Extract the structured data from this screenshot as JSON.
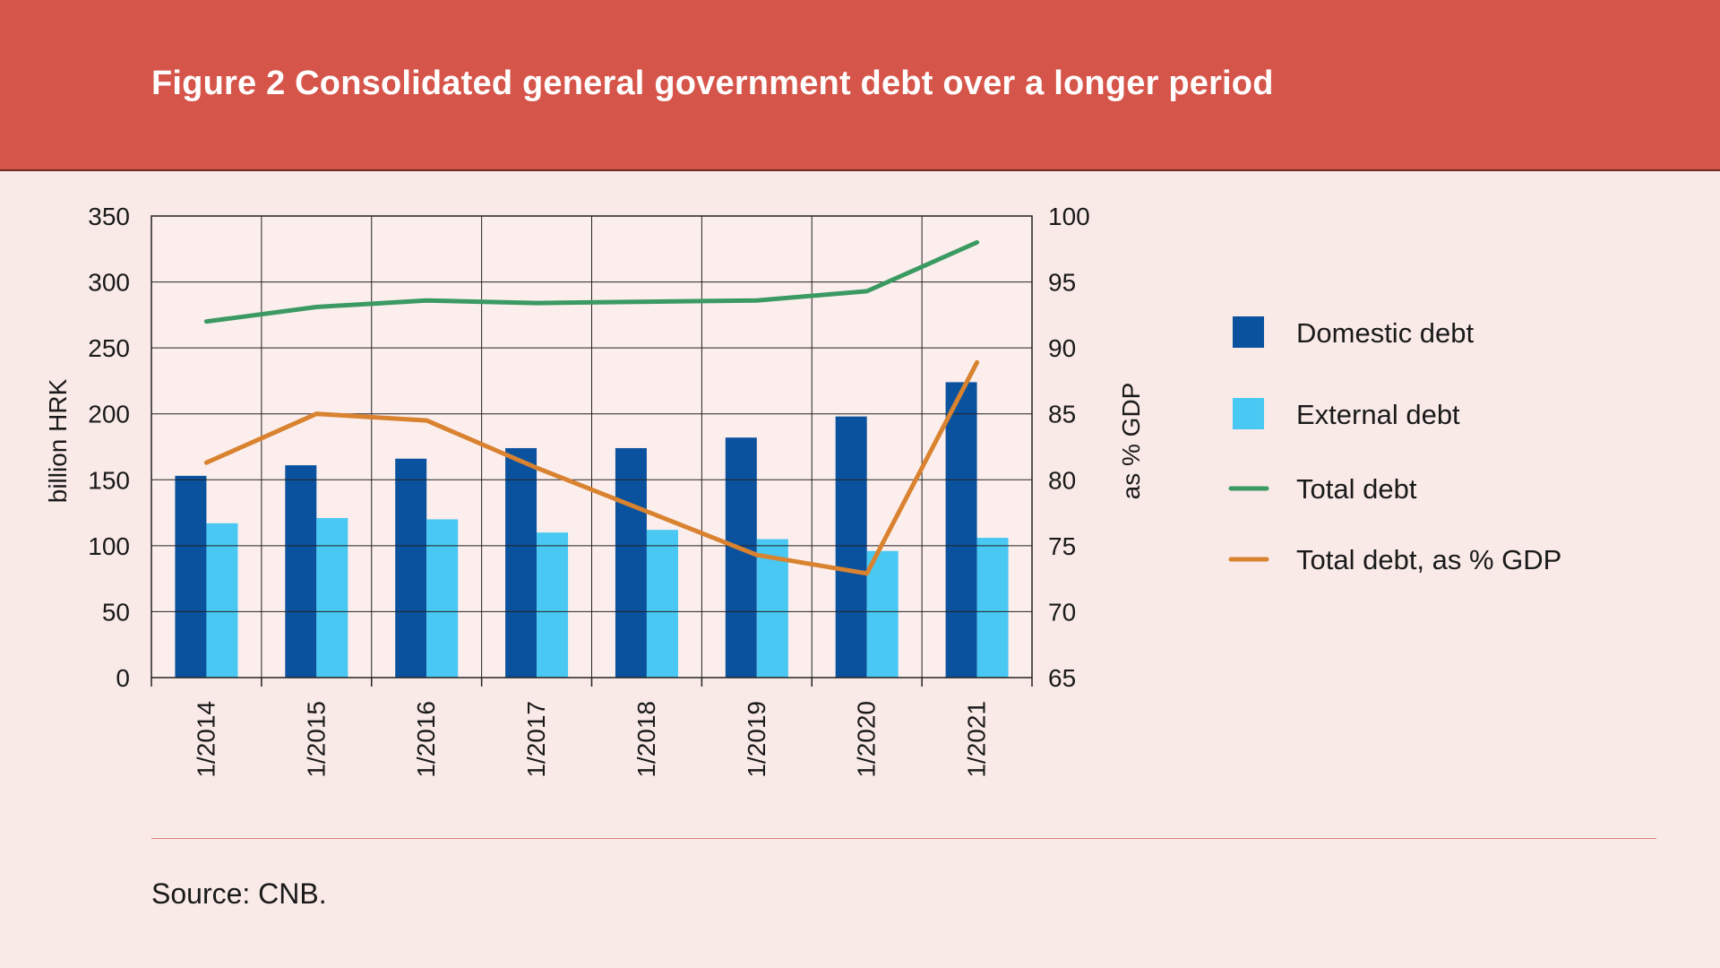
{
  "header": {
    "title": "Figure 2 Consolidated general government debt over a longer period"
  },
  "footer": {
    "source": "Source: CNB."
  },
  "colors": {
    "header_bg": "#d6554a",
    "page_bg": "#f9eae8",
    "domestic": "#0b529e",
    "external": "#48c8f2",
    "total": "#3a9a62",
    "pct_gdp": "#d9822f",
    "grid": "#222222"
  },
  "chart_data": {
    "type": "bar",
    "categories": [
      "1/2014",
      "1/2015",
      "1/2016",
      "1/2017",
      "1/2018",
      "1/2019",
      "1/2020",
      "1/2021"
    ],
    "left_axis": {
      "label": "billion HRK",
      "ylim": [
        0,
        350
      ],
      "ticks": [
        "0",
        "50",
        "100",
        "150",
        "200",
        "250",
        "300",
        "350"
      ]
    },
    "right_axis": {
      "label": "as % GDP",
      "ylim": [
        65,
        100
      ],
      "ticks": [
        "65",
        "70",
        "75",
        "80",
        "85",
        "90",
        "95",
        "100"
      ]
    },
    "series": [
      {
        "name": "Domestic debt",
        "type": "bar",
        "axis": "left",
        "color": "#0b529e",
        "values": [
          153,
          161,
          166,
          174,
          174,
          182,
          198,
          224
        ]
      },
      {
        "name": "External debt",
        "type": "bar",
        "axis": "left",
        "color": "#48c8f2",
        "values": [
          117,
          121,
          120,
          110,
          112,
          105,
          96,
          106
        ]
      },
      {
        "name": "Total debt",
        "type": "line",
        "axis": "left",
        "color": "#3a9a62",
        "values": [
          270,
          281,
          286,
          284,
          285,
          286,
          293,
          330
        ]
      },
      {
        "name": "Total debt, as % GDP",
        "type": "line",
        "axis": "right",
        "color": "#d9822f",
        "values": [
          81.3,
          85.0,
          84.5,
          80.9,
          77.6,
          74.3,
          72.9,
          88.9
        ]
      }
    ],
    "grid": true,
    "legend_position": "right"
  }
}
